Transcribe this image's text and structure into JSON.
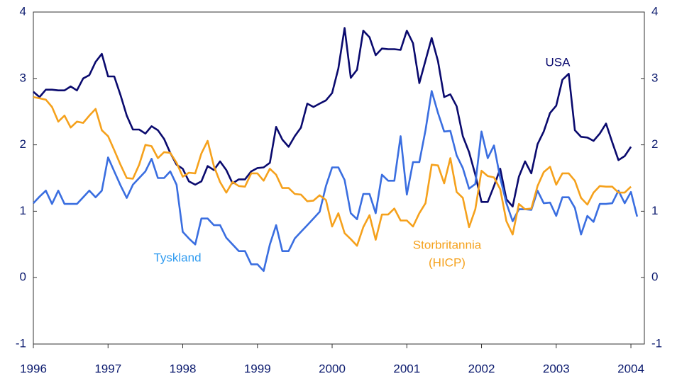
{
  "chart_data": {
    "type": "line",
    "x": [
      1996,
      1996.083,
      1996.167,
      1996.25,
      1996.333,
      1996.417,
      1996.5,
      1996.583,
      1996.667,
      1996.75,
      1996.833,
      1996.917,
      1997,
      1997.083,
      1997.167,
      1997.25,
      1997.333,
      1997.417,
      1997.5,
      1997.583,
      1997.667,
      1997.75,
      1997.833,
      1997.917,
      1998,
      1998.083,
      1998.167,
      1998.25,
      1998.333,
      1998.417,
      1998.5,
      1998.583,
      1998.667,
      1998.75,
      1998.833,
      1998.917,
      1999,
      1999.083,
      1999.167,
      1999.25,
      1999.333,
      1999.417,
      1999.5,
      1999.583,
      1999.667,
      1999.75,
      1999.833,
      1999.917,
      2000,
      2000.083,
      2000.167,
      2000.25,
      2000.333,
      2000.417,
      2000.5,
      2000.583,
      2000.667,
      2000.75,
      2000.833,
      2000.917,
      2001,
      2001.083,
      2001.167,
      2001.25,
      2001.333,
      2001.417,
      2001.5,
      2001.583,
      2001.667,
      2001.75,
      2001.833,
      2001.917,
      2002,
      2002.083,
      2002.167,
      2002.25,
      2002.333,
      2002.417,
      2002.5,
      2002.583,
      2002.667,
      2002.75,
      2002.833,
      2002.917,
      2003,
      2003.083,
      2003.167,
      2003.25,
      2003.333,
      2003.417,
      2003.5,
      2003.583,
      2003.667,
      2003.75,
      2003.833,
      2003.917,
      2004,
      2004.083
    ],
    "series": [
      {
        "label": [
          "USA"
        ],
        "color": "#0a0a6e",
        "label_color": "#0a0a6e",
        "values": [
          2.8,
          2.72,
          2.83,
          2.83,
          2.82,
          2.82,
          2.88,
          2.82,
          3.0,
          3.05,
          3.25,
          3.37,
          3.03,
          3.03,
          2.75,
          2.44,
          2.23,
          2.23,
          2.17,
          2.28,
          2.22,
          2.09,
          1.88,
          1.7,
          1.64,
          1.45,
          1.4,
          1.45,
          1.68,
          1.62,
          1.75,
          1.62,
          1.42,
          1.48,
          1.48,
          1.6,
          1.65,
          1.66,
          1.73,
          2.27,
          2.08,
          1.97,
          2.13,
          2.26,
          2.62,
          2.57,
          2.62,
          2.67,
          2.78,
          3.15,
          3.76,
          3.01,
          3.13,
          3.72,
          3.62,
          3.35,
          3.45,
          3.44,
          3.44,
          3.43,
          3.72,
          3.53,
          2.93,
          3.27,
          3.61,
          3.26,
          2.72,
          2.76,
          2.58,
          2.13,
          1.89,
          1.55,
          1.14,
          1.14,
          1.38,
          1.64,
          1.18,
          1.07,
          1.52,
          1.75,
          1.57,
          2.01,
          2.2,
          2.48,
          2.59,
          2.98,
          3.07,
          2.22,
          2.12,
          2.11,
          2.06,
          2.17,
          2.32,
          2.04,
          1.77,
          1.83,
          1.97,
          null
        ]
      },
      {
        "label": [
          "Tyskland"
        ],
        "color": "#3a6ee0",
        "label_color": "#2f9bf0",
        "values": [
          1.12,
          1.22,
          1.31,
          1.11,
          1.31,
          1.11,
          1.11,
          1.11,
          1.21,
          1.31,
          1.21,
          1.31,
          1.81,
          1.6,
          1.39,
          1.2,
          1.4,
          1.5,
          1.6,
          1.79,
          1.5,
          1.5,
          1.6,
          1.4,
          0.69,
          0.59,
          0.5,
          0.89,
          0.89,
          0.79,
          0.79,
          0.6,
          0.5,
          0.4,
          0.4,
          0.2,
          0.2,
          0.1,
          0.5,
          0.79,
          0.4,
          0.4,
          0.59,
          0.69,
          0.79,
          0.89,
          0.99,
          1.38,
          1.66,
          1.66,
          1.47,
          0.97,
          0.88,
          1.26,
          1.26,
          0.97,
          1.55,
          1.46,
          1.46,
          2.13,
          1.25,
          1.74,
          1.74,
          2.22,
          2.81,
          2.48,
          2.2,
          2.21,
          1.84,
          1.65,
          1.34,
          1.41,
          2.2,
          1.8,
          1.99,
          1.5,
          1.12,
          0.85,
          1.03,
          1.03,
          1.02,
          1.31,
          1.12,
          1.13,
          0.93,
          1.21,
          1.21,
          1.05,
          0.65,
          0.93,
          0.84,
          1.11,
          1.11,
          1.12,
          1.31,
          1.12,
          1.29,
          0.92
        ]
      },
      {
        "label": [
          "Storbritannia",
          "(HICP)"
        ],
        "color": "#f5a11c",
        "label_color": "#f5a11c",
        "values": [
          2.72,
          2.7,
          2.68,
          2.57,
          2.35,
          2.44,
          2.26,
          2.35,
          2.33,
          2.44,
          2.54,
          2.22,
          2.13,
          1.92,
          1.7,
          1.5,
          1.49,
          1.7,
          2.0,
          1.98,
          1.8,
          1.89,
          1.88,
          1.73,
          1.52,
          1.58,
          1.57,
          1.87,
          2.06,
          1.68,
          1.44,
          1.28,
          1.44,
          1.38,
          1.37,
          1.57,
          1.57,
          1.46,
          1.64,
          1.55,
          1.35,
          1.35,
          1.26,
          1.25,
          1.15,
          1.16,
          1.24,
          1.17,
          0.77,
          0.97,
          0.67,
          0.58,
          0.48,
          0.76,
          0.94,
          0.57,
          0.95,
          0.95,
          1.04,
          0.86,
          0.86,
          0.77,
          0.97,
          1.12,
          1.7,
          1.69,
          1.42,
          1.8,
          1.29,
          1.2,
          0.76,
          1.03,
          1.61,
          1.53,
          1.51,
          1.33,
          0.85,
          0.65,
          1.11,
          1.03,
          1.04,
          1.38,
          1.59,
          1.67,
          1.4,
          1.57,
          1.57,
          1.46,
          1.2,
          1.1,
          1.28,
          1.38,
          1.37,
          1.37,
          1.28,
          1.28,
          1.37,
          null
        ]
      }
    ],
    "xlim": [
      1996,
      2004.18
    ],
    "xticks": [
      1996,
      1997,
      1998,
      1999,
      2000,
      2001,
      2002,
      2003,
      2004
    ],
    "ylim": [
      -1,
      4
    ],
    "yticks": [
      -1,
      0,
      1,
      2,
      3,
      4
    ],
    "y2lim": [
      -1,
      4
    ],
    "y2ticks": [
      -1,
      0,
      1,
      2,
      3,
      4
    ]
  }
}
